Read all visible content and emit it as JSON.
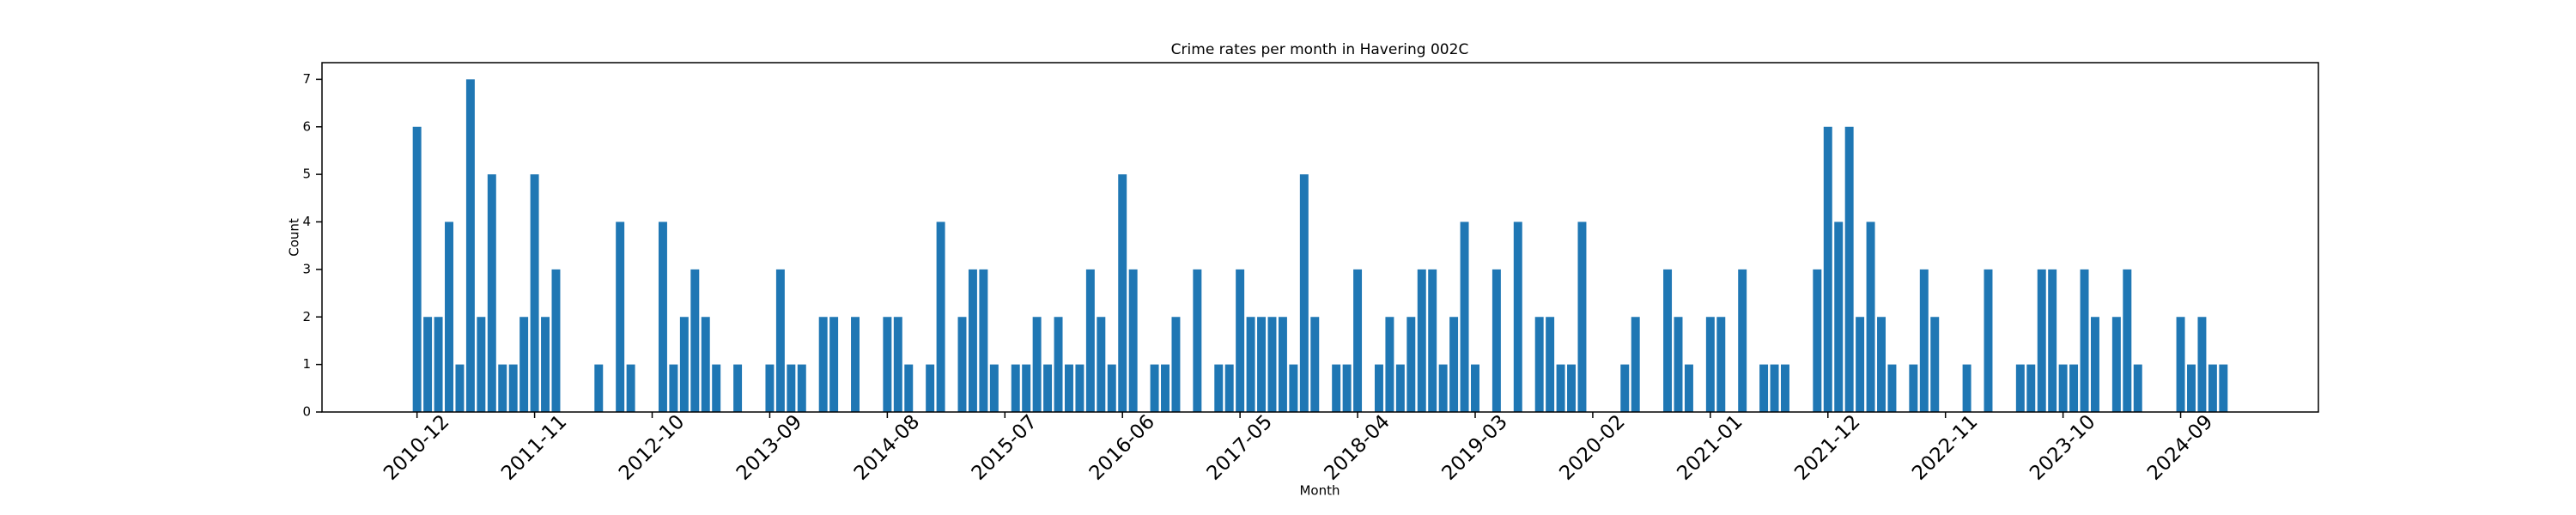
{
  "chart_data": {
    "type": "bar",
    "title": "Crime rates per month in Havering 002C",
    "xlabel": "Month",
    "ylabel": "Count",
    "color": "#1f77b4",
    "grid": false,
    "ylim": [
      0,
      7.35
    ],
    "yticks": [
      0,
      1,
      2,
      3,
      4,
      5,
      6,
      7
    ],
    "categories": [
      "2010-12",
      null,
      null,
      null,
      null,
      null,
      null,
      null,
      null,
      null,
      null,
      "2011-11",
      null,
      null,
      null,
      null,
      null,
      null,
      null,
      null,
      null,
      null,
      "2012-10",
      null,
      null,
      null,
      null,
      null,
      null,
      null,
      null,
      null,
      null,
      "2013-09",
      null,
      null,
      null,
      null,
      null,
      null,
      null,
      null,
      null,
      null,
      "2014-08",
      null,
      null,
      null,
      null,
      null,
      null,
      null,
      null,
      null,
      null,
      "2015-07",
      null,
      null,
      null,
      null,
      null,
      null,
      null,
      null,
      null,
      null,
      "2016-06",
      null,
      null,
      null,
      null,
      null,
      null,
      null,
      null,
      null,
      null,
      "2017-05",
      null,
      null,
      null,
      null,
      null,
      null,
      null,
      null,
      null,
      null,
      "2018-04",
      null,
      null,
      null,
      null,
      null,
      null,
      null,
      null,
      null,
      null,
      "2019-03",
      null,
      null,
      null,
      null,
      null,
      null,
      null,
      null,
      null,
      null,
      "2020-02",
      null,
      null,
      null,
      null,
      null,
      null,
      null,
      null,
      null,
      null,
      "2021-01",
      null,
      null,
      null,
      null,
      null,
      null,
      null,
      null,
      null,
      null,
      "2021-12",
      null,
      null,
      null,
      null,
      null,
      null,
      null,
      null,
      null,
      null,
      "2022-11",
      null,
      null,
      null,
      null,
      null,
      null,
      null,
      null,
      null,
      null,
      "2023-10",
      null,
      null,
      null,
      null,
      null,
      null,
      null,
      null,
      null,
      null,
      "2024-09",
      null,
      null,
      null,
      null
    ],
    "values": [
      6,
      2,
      2,
      4,
      1,
      7,
      2,
      5,
      1,
      1,
      2,
      5,
      2,
      3,
      0,
      0,
      0,
      1,
      0,
      4,
      1,
      0,
      0,
      4,
      1,
      2,
      3,
      2,
      1,
      0,
      1,
      0,
      0,
      1,
      3,
      1,
      1,
      0,
      2,
      2,
      0,
      2,
      0,
      0,
      2,
      2,
      1,
      0,
      1,
      4,
      0,
      2,
      3,
      3,
      1,
      0,
      1,
      1,
      2,
      1,
      2,
      1,
      1,
      3,
      2,
      1,
      5,
      3,
      0,
      1,
      1,
      2,
      0,
      3,
      0,
      1,
      1,
      3,
      2,
      2,
      2,
      2,
      1,
      5,
      2,
      0,
      1,
      1,
      3,
      0,
      1,
      2,
      1,
      2,
      3,
      3,
      1,
      2,
      4,
      1,
      0,
      3,
      0,
      4,
      0,
      2,
      2,
      1,
      1,
      4,
      0,
      0,
      0,
      1,
      2,
      0,
      0,
      3,
      2,
      1,
      0,
      2,
      2,
      0,
      3,
      0,
      1,
      1,
      1,
      0,
      0,
      3,
      6,
      4,
      6,
      2,
      4,
      2,
      1,
      0,
      1,
      3,
      2,
      0,
      0,
      1,
      0,
      3,
      0,
      0,
      1,
      1,
      3,
      3,
      1,
      1,
      3,
      2,
      0,
      2,
      3,
      1,
      0,
      0,
      0,
      2,
      1,
      2,
      1,
      1
    ]
  }
}
